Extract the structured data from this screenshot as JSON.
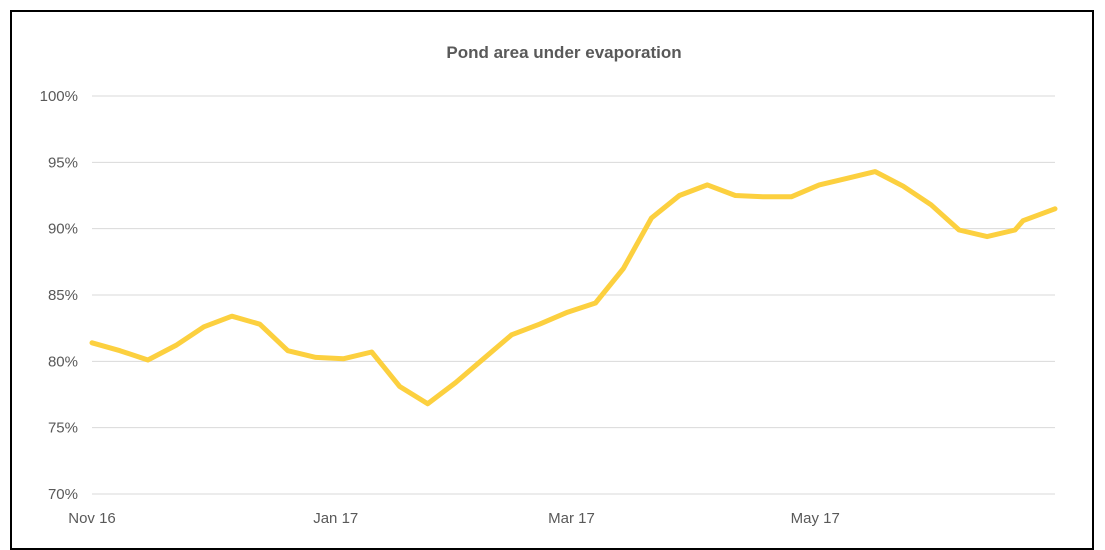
{
  "chart_data": {
    "type": "line",
    "title": "Pond area under evaporation",
    "xlabel": "",
    "ylabel": "",
    "y_ticks": [
      "70%",
      "75%",
      "80%",
      "85%",
      "90%",
      "95%",
      "100%"
    ],
    "ylim": [
      70,
      100
    ],
    "x_ticks": [
      "Nov 16",
      "Jan 17",
      "Mar 17",
      "May 17"
    ],
    "grid": true,
    "legend": "none",
    "colors": {
      "line": "#FCD03F",
      "grid": "#D9D9D9",
      "text": "#595959"
    },
    "series": [
      {
        "points": [
          [
            "2016-11-01",
            81.4
          ],
          [
            "2016-11-08",
            80.8
          ],
          [
            "2016-11-15",
            80.1
          ],
          [
            "2016-11-22",
            81.2
          ],
          [
            "2016-11-29",
            82.6
          ],
          [
            "2016-12-06",
            83.4
          ],
          [
            "2016-12-13",
            82.8
          ],
          [
            "2016-12-20",
            80.8
          ],
          [
            "2016-12-27",
            80.3
          ],
          [
            "2017-01-03",
            80.2
          ],
          [
            "2017-01-10",
            80.7
          ],
          [
            "2017-01-17",
            78.1
          ],
          [
            "2017-01-24",
            76.8
          ],
          [
            "2017-01-31",
            78.4
          ],
          [
            "2017-02-07",
            80.2
          ],
          [
            "2017-02-14",
            82.0
          ],
          [
            "2017-02-21",
            82.8
          ],
          [
            "2017-02-28",
            83.7
          ],
          [
            "2017-03-07",
            84.4
          ],
          [
            "2017-03-14",
            87.0
          ],
          [
            "2017-03-21",
            90.8
          ],
          [
            "2017-03-28",
            92.5
          ],
          [
            "2017-04-04",
            93.3
          ],
          [
            "2017-04-11",
            92.5
          ],
          [
            "2017-04-18",
            92.4
          ],
          [
            "2017-04-25",
            92.4
          ],
          [
            "2017-05-02",
            93.3
          ],
          [
            "2017-05-09",
            93.8
          ],
          [
            "2017-05-16",
            94.3
          ],
          [
            "2017-05-23",
            93.2
          ],
          [
            "2017-05-30",
            91.8
          ],
          [
            "2017-06-06",
            89.9
          ],
          [
            "2017-06-13",
            89.4
          ],
          [
            "2017-06-20",
            89.9
          ],
          [
            "2017-06-22",
            90.6
          ],
          [
            "2017-06-30",
            91.5
          ]
        ]
      }
    ]
  }
}
